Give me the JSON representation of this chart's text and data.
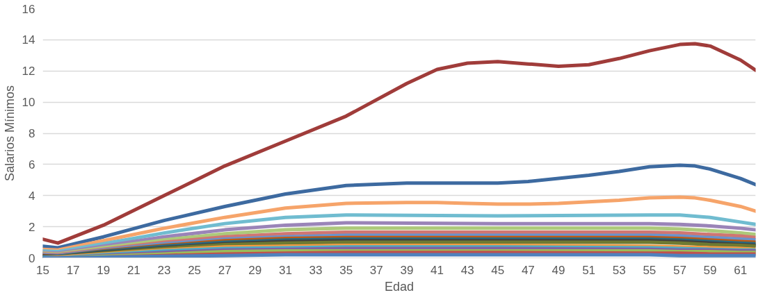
{
  "chart_data": {
    "type": "line",
    "xlabel": "Edad",
    "ylabel": "Salarios Mínimos",
    "xlim": [
      15,
      62
    ],
    "xticks": [
      15,
      17,
      19,
      21,
      23,
      25,
      27,
      29,
      31,
      33,
      35,
      37,
      39,
      41,
      43,
      45,
      47,
      49,
      51,
      53,
      55,
      57,
      59,
      61
    ],
    "ylim": [
      0,
      16
    ],
    "yticks": [
      0,
      2,
      4,
      6,
      8,
      10,
      12,
      14,
      16
    ],
    "grid": "y",
    "marker": "none",
    "line_style": "solid",
    "series": [
      {
        "color": "#a03c3a",
        "x": [
          15,
          16,
          19,
          23,
          27,
          31,
          35,
          39,
          41,
          43,
          45,
          47,
          49,
          51,
          53,
          55,
          57,
          58,
          59,
          61,
          62
        ],
        "values": [
          1.2,
          0.95,
          2.1,
          4.0,
          5.9,
          7.5,
          9.1,
          11.2,
          12.1,
          12.5,
          12.6,
          12.45,
          12.3,
          12.4,
          12.8,
          13.3,
          13.7,
          13.75,
          13.6,
          12.7,
          12.05
        ]
      },
      {
        "color": "#3d6aa0",
        "x": [
          15,
          16,
          19,
          23,
          27,
          31,
          35,
          39,
          41,
          43,
          45,
          47,
          49,
          51,
          53,
          55,
          57,
          58,
          59,
          61,
          62
        ],
        "values": [
          0.75,
          0.65,
          1.35,
          2.4,
          3.3,
          4.1,
          4.65,
          4.8,
          4.8,
          4.8,
          4.8,
          4.9,
          5.1,
          5.3,
          5.55,
          5.85,
          5.95,
          5.9,
          5.7,
          5.1,
          4.7
        ]
      },
      {
        "color": "#f6a46a",
        "x": [
          15,
          16,
          19,
          23,
          27,
          31,
          35,
          39,
          41,
          43,
          45,
          47,
          49,
          51,
          53,
          55,
          57,
          58,
          59,
          61,
          62
        ],
        "values": [
          0.55,
          0.5,
          1.1,
          1.9,
          2.6,
          3.2,
          3.5,
          3.55,
          3.55,
          3.5,
          3.45,
          3.45,
          3.5,
          3.6,
          3.7,
          3.85,
          3.9,
          3.85,
          3.7,
          3.3,
          3.0
        ]
      },
      {
        "color": "#70bcd0",
        "x": [
          15,
          16,
          19,
          23,
          27,
          31,
          35,
          45,
          55,
          57,
          59,
          61,
          62
        ],
        "values": [
          0.45,
          0.4,
          0.9,
          1.6,
          2.2,
          2.6,
          2.75,
          2.7,
          2.75,
          2.75,
          2.6,
          2.3,
          2.15
        ]
      },
      {
        "color": "#9a84b8",
        "x": [
          15,
          16,
          19,
          23,
          27,
          31,
          35,
          45,
          55,
          57,
          59,
          61,
          62
        ],
        "values": [
          0.35,
          0.3,
          0.75,
          1.35,
          1.8,
          2.1,
          2.25,
          2.2,
          2.2,
          2.15,
          2.05,
          1.9,
          1.8
        ]
      },
      {
        "color": "#adc97a",
        "x": [
          15,
          16,
          19,
          23,
          27,
          31,
          35,
          45,
          55,
          57,
          59,
          61,
          62
        ],
        "values": [
          0.3,
          0.25,
          0.65,
          1.15,
          1.55,
          1.8,
          1.9,
          1.9,
          1.9,
          1.85,
          1.75,
          1.6,
          1.5
        ]
      },
      {
        "color": "#d07672",
        "x": [
          15,
          16,
          19,
          23,
          27,
          31,
          35,
          45,
          55,
          57,
          59,
          61,
          62
        ],
        "values": [
          0.25,
          0.2,
          0.55,
          1.0,
          1.35,
          1.55,
          1.65,
          1.65,
          1.65,
          1.6,
          1.5,
          1.4,
          1.3
        ]
      },
      {
        "color": "#6a93cc",
        "x": [
          15,
          16,
          19,
          23,
          27,
          31,
          35,
          45,
          55,
          57,
          59,
          61,
          62
        ],
        "values": [
          0.2,
          0.15,
          0.5,
          0.9,
          1.2,
          1.35,
          1.45,
          1.45,
          1.45,
          1.4,
          1.3,
          1.2,
          1.15
        ]
      },
      {
        "color": "#c05a12",
        "x": [
          15,
          16,
          19,
          23,
          27,
          31,
          35,
          45,
          55,
          57,
          59,
          61,
          62
        ],
        "values": [
          0.15,
          0.1,
          0.45,
          0.8,
          1.1,
          1.25,
          1.3,
          1.3,
          1.3,
          1.25,
          1.15,
          1.05,
          1.0
        ]
      },
      {
        "color": "#2a6a80",
        "x": [
          15,
          16,
          19,
          23,
          27,
          31,
          35,
          45,
          55,
          57,
          59,
          61,
          62
        ],
        "values": [
          0.1,
          0.1,
          0.4,
          0.75,
          1.0,
          1.15,
          1.2,
          1.2,
          1.2,
          1.15,
          1.05,
          0.95,
          0.9
        ]
      },
      {
        "color": "#404040",
        "x": [
          15,
          16,
          19,
          23,
          27,
          31,
          35,
          45,
          55,
          57,
          59,
          61,
          62
        ],
        "values": [
          0.1,
          0.05,
          0.35,
          0.65,
          0.9,
          1.05,
          1.1,
          1.1,
          1.1,
          1.05,
          0.95,
          0.85,
          0.8
        ]
      },
      {
        "color": "#6e7a32",
        "x": [
          15,
          16,
          19,
          23,
          27,
          31,
          35,
          45,
          55,
          57,
          59,
          61,
          62
        ],
        "values": [
          0.05,
          0.05,
          0.3,
          0.6,
          0.85,
          0.95,
          1.0,
          1.0,
          1.0,
          0.95,
          0.85,
          0.8,
          0.75
        ]
      },
      {
        "color": "#f59a40",
        "x": [
          15,
          16,
          19,
          23,
          27,
          31,
          35,
          45,
          55,
          57,
          59,
          61,
          62
        ],
        "values": [
          0.05,
          0.05,
          0.25,
          0.5,
          0.7,
          0.75,
          0.8,
          0.8,
          0.75,
          0.7,
          0.65,
          0.6,
          0.55
        ]
      },
      {
        "color": "#4bacc6",
        "x": [
          15,
          16,
          19,
          23,
          27,
          31,
          35,
          45,
          55,
          57,
          59,
          61,
          62
        ],
        "values": [
          0.05,
          0.0,
          0.2,
          0.45,
          0.6,
          0.65,
          0.7,
          0.7,
          0.65,
          0.6,
          0.55,
          0.5,
          0.5
        ]
      },
      {
        "color": "#7f62a0",
        "x": [
          15,
          16,
          19,
          23,
          27,
          31,
          35,
          45,
          55,
          57,
          59,
          61,
          62
        ],
        "values": [
          0.0,
          0.0,
          0.15,
          0.35,
          0.5,
          0.55,
          0.6,
          0.6,
          0.55,
          0.5,
          0.5,
          0.45,
          0.45
        ]
      },
      {
        "color": "#9bbb59",
        "x": [
          15,
          16,
          19,
          23,
          27,
          31,
          35,
          45,
          55,
          57,
          59,
          61,
          62
        ],
        "values": [
          0.0,
          0.0,
          0.1,
          0.25,
          0.4,
          0.45,
          0.45,
          0.45,
          0.45,
          0.4,
          0.4,
          0.35,
          0.35
        ]
      },
      {
        "color": "#c0504d",
        "x": [
          19,
          23,
          27,
          31,
          35,
          45,
          55,
          57,
          59,
          61,
          62
        ],
        "values": [
          0.05,
          0.15,
          0.25,
          0.3,
          0.35,
          0.35,
          0.3,
          0.3,
          0.25,
          0.25,
          0.25
        ]
      },
      {
        "color": "#4f81bd",
        "x": [
          15,
          16,
          19,
          23,
          27,
          31,
          35,
          45,
          55,
          57,
          59,
          61,
          62
        ],
        "values": [
          0.0,
          0.0,
          0.05,
          0.1,
          0.15,
          0.2,
          0.2,
          0.2,
          0.2,
          0.15,
          0.15,
          0.15,
          0.15
        ]
      }
    ]
  }
}
